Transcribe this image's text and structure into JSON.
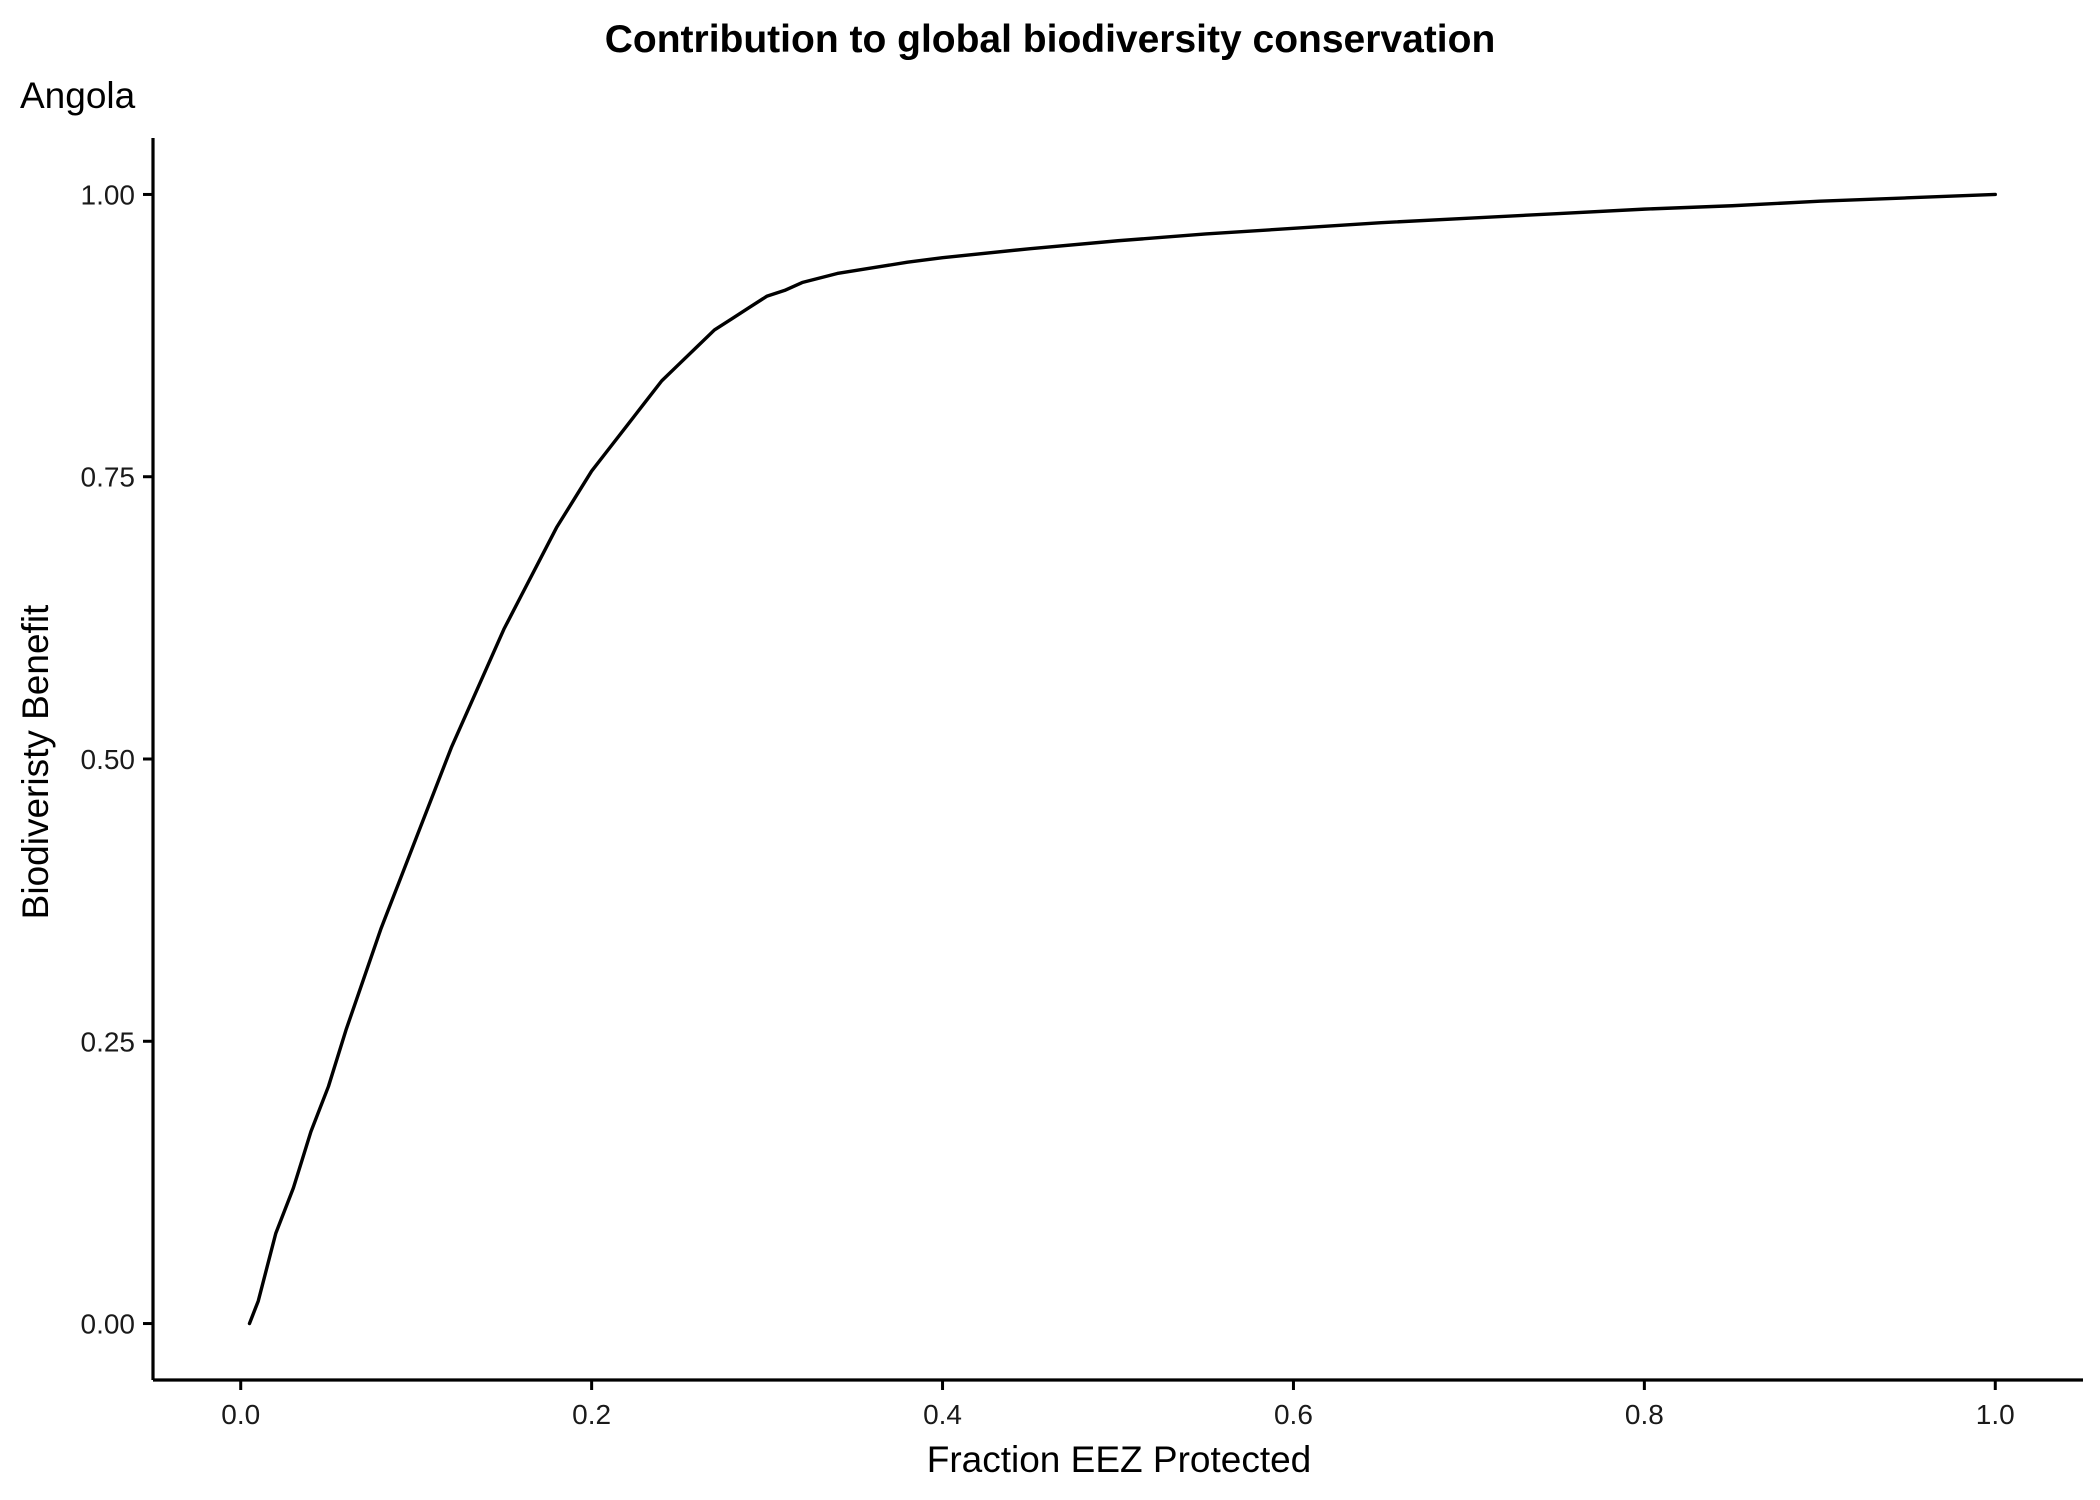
{
  "chart_data": {
    "type": "line",
    "title": "Contribution to global biodiversity conservation",
    "subtitle": "Angola",
    "xlabel": "Fraction EEZ Protected",
    "ylabel": "Biodiveristy Benefit",
    "xlim": [
      -0.05,
      1.05
    ],
    "ylim": [
      -0.05,
      1.05
    ],
    "x_ticks": [
      0.0,
      0.2,
      0.4,
      0.6,
      0.8,
      1.0
    ],
    "x_tick_labels": [
      "0.0",
      "0.2",
      "0.4",
      "0.6",
      "0.8",
      "1.0"
    ],
    "y_ticks": [
      0.0,
      0.25,
      0.5,
      0.75,
      1.0
    ],
    "y_tick_labels": [
      "0.00",
      "0.25",
      "0.50",
      "0.75",
      "1.00"
    ],
    "grid": false,
    "legend": "none",
    "series": [
      {
        "color": "#000000",
        "x": [
          0.005,
          0.01,
          0.015,
          0.02,
          0.025,
          0.03,
          0.035,
          0.04,
          0.045,
          0.05,
          0.06,
          0.07,
          0.08,
          0.09,
          0.1,
          0.11,
          0.12,
          0.13,
          0.14,
          0.15,
          0.16,
          0.17,
          0.18,
          0.19,
          0.2,
          0.21,
          0.22,
          0.23,
          0.24,
          0.25,
          0.26,
          0.27,
          0.28,
          0.29,
          0.3,
          0.31,
          0.32,
          0.33,
          0.34,
          0.36,
          0.38,
          0.4,
          0.45,
          0.5,
          0.55,
          0.6,
          0.65,
          0.7,
          0.75,
          0.8,
          0.85,
          0.9,
          0.95,
          1.0
        ],
        "y": [
          0.0,
          0.02,
          0.05,
          0.08,
          0.1,
          0.12,
          0.145,
          0.17,
          0.19,
          0.21,
          0.26,
          0.305,
          0.35,
          0.39,
          0.43,
          0.47,
          0.51,
          0.545,
          0.58,
          0.615,
          0.645,
          0.675,
          0.705,
          0.73,
          0.755,
          0.775,
          0.795,
          0.815,
          0.835,
          0.85,
          0.865,
          0.88,
          0.89,
          0.9,
          0.91,
          0.915,
          0.922,
          0.926,
          0.93,
          0.935,
          0.94,
          0.944,
          0.952,
          0.959,
          0.965,
          0.97,
          0.975,
          0.979,
          0.983,
          0.987,
          0.99,
          0.994,
          0.997,
          1.0
        ]
      }
    ]
  }
}
